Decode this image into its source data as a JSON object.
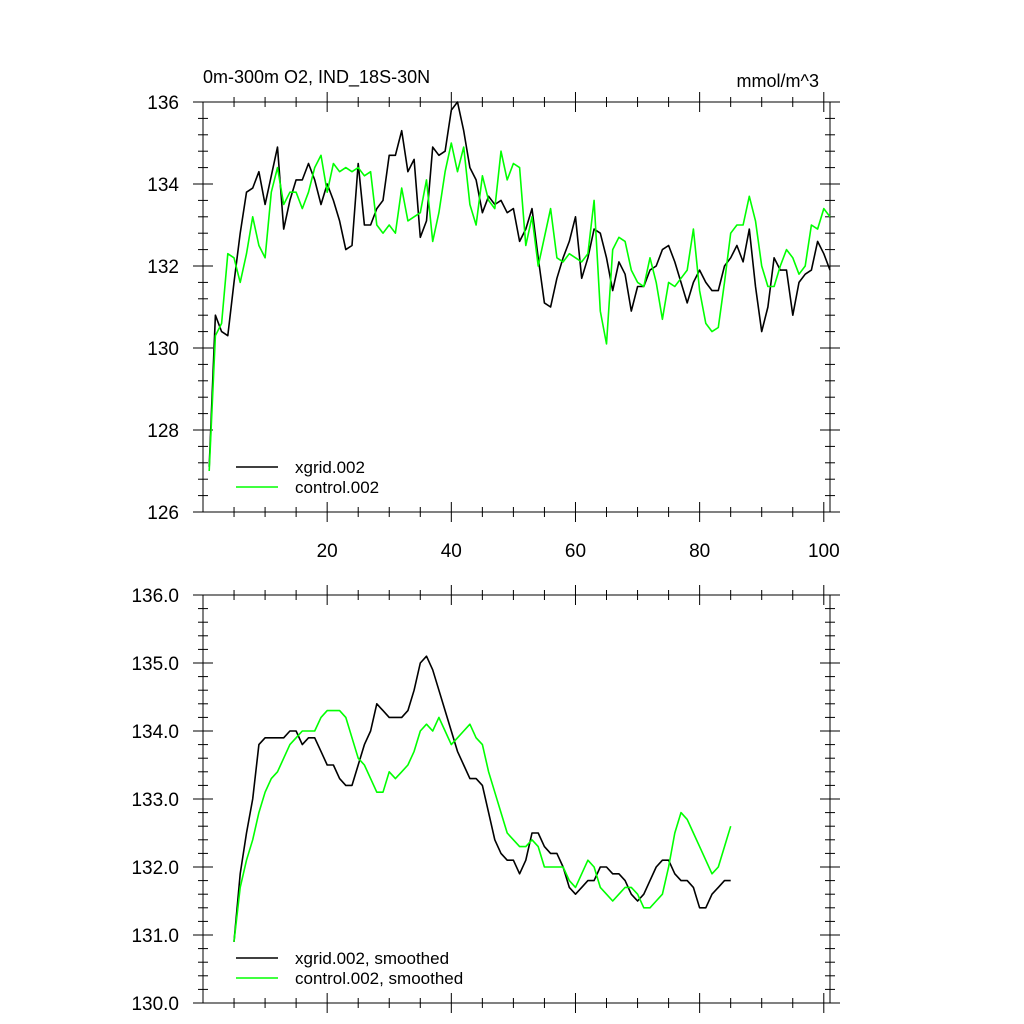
{
  "figure": {
    "title": "0m-300m O2, IND_18S-30N",
    "units": "mmol/m^3"
  },
  "chart_data": [
    {
      "type": "line",
      "panel": "top",
      "title": "0m-300m O2, IND_18S-30N",
      "units_label": "mmol/m^3",
      "xlim": [
        0,
        101
      ],
      "ylim": [
        126,
        136
      ],
      "xticks": [
        20,
        40,
        60,
        80,
        100
      ],
      "xtick_labels": [
        "20",
        "40",
        "60",
        "80",
        "100"
      ],
      "yticks": [
        126,
        128,
        130,
        132,
        134,
        136
      ],
      "ytick_labels": [
        "126",
        "128",
        "130",
        "132",
        "134",
        "136"
      ],
      "legend_position": "bottom-left",
      "x_start": 1,
      "series": [
        {
          "name": "xgrid.002",
          "color": "#000000",
          "values": [
            127.1,
            130.8,
            130.4,
            130.3,
            131.6,
            132.8,
            133.8,
            133.9,
            134.3,
            133.5,
            134.2,
            134.9,
            132.9,
            133.6,
            134.1,
            134.1,
            134.5,
            134.1,
            133.5,
            134.0,
            133.6,
            133.1,
            132.4,
            132.5,
            134.5,
            133.0,
            133.0,
            133.4,
            133.6,
            134.7,
            134.7,
            135.3,
            134.3,
            134.6,
            132.7,
            133.1,
            134.9,
            134.7,
            134.8,
            135.8,
            136.0,
            135.3,
            134.4,
            134.1,
            133.3,
            133.7,
            133.5,
            133.6,
            133.3,
            133.4,
            132.6,
            132.9,
            133.4,
            132.2,
            131.1,
            131.0,
            131.7,
            132.2,
            132.6,
            133.2,
            131.7,
            132.2,
            132.9,
            132.8,
            132.2,
            131.4,
            132.1,
            131.8,
            130.9,
            131.5,
            131.5,
            131.9,
            132.0,
            132.4,
            132.5,
            132.1,
            131.6,
            131.1,
            131.6,
            131.9,
            131.6,
            131.4,
            131.4,
            132.0,
            132.2,
            132.5,
            132.1,
            132.9,
            131.5,
            130.4,
            131.0,
            132.2,
            131.9,
            131.9,
            130.8,
            131.6,
            131.8,
            131.9,
            132.6,
            132.3,
            131.9
          ]
        },
        {
          "name": "control.002",
          "color": "#00ff00",
          "values": [
            127.0,
            130.3,
            130.6,
            132.3,
            132.2,
            131.6,
            132.3,
            133.2,
            132.5,
            132.2,
            133.8,
            134.4,
            133.5,
            133.8,
            133.8,
            133.4,
            133.8,
            134.4,
            134.7,
            133.8,
            134.5,
            134.3,
            134.4,
            134.3,
            134.4,
            134.2,
            134.3,
            133.0,
            132.8,
            133.0,
            132.8,
            133.9,
            133.1,
            133.2,
            133.3,
            134.1,
            132.6,
            133.3,
            134.3,
            135.0,
            134.3,
            134.9,
            133.5,
            133.0,
            134.2,
            133.6,
            133.4,
            134.8,
            134.1,
            134.5,
            134.4,
            132.5,
            133.2,
            132.0,
            132.7,
            133.4,
            132.2,
            132.1,
            132.3,
            132.2,
            132.1,
            132.3,
            133.6,
            130.9,
            130.1,
            132.4,
            132.7,
            132.6,
            131.9,
            131.6,
            131.5,
            132.2,
            131.6,
            130.7,
            131.6,
            131.5,
            131.7,
            131.9,
            132.9,
            131.4,
            130.6,
            130.4,
            130.5,
            131.6,
            132.8,
            133.0,
            133.0,
            133.7,
            133.1,
            132.0,
            131.5,
            131.5,
            132.0,
            132.4,
            132.2,
            131.8,
            132.0,
            133.0,
            132.9,
            133.4,
            133.2
          ]
        }
      ]
    },
    {
      "type": "line",
      "panel": "bottom",
      "xlim": [
        0,
        101
      ],
      "ylim": [
        130.0,
        136.0
      ],
      "xticks": [
        20,
        40,
        60,
        80,
        100
      ],
      "xtick_labels": [],
      "yticks": [
        130,
        131,
        132,
        133,
        134,
        135,
        136
      ],
      "ytick_labels": [
        "130.0",
        "131.0",
        "132.0",
        "133.0",
        "134.0",
        "135.0",
        "136.0"
      ],
      "legend_position": "bottom-left",
      "x_start": 5,
      "series": [
        {
          "name": "xgrid.002, smoothed",
          "color": "#000000",
          "values": [
            130.9,
            131.9,
            132.5,
            133.0,
            133.8,
            133.9,
            133.9,
            133.9,
            133.9,
            134.0,
            134.0,
            133.8,
            133.9,
            133.9,
            133.7,
            133.5,
            133.5,
            133.3,
            133.2,
            133.2,
            133.5,
            133.8,
            134.0,
            134.4,
            134.3,
            134.2,
            134.2,
            134.2,
            134.3,
            134.6,
            135.0,
            135.1,
            134.9,
            134.6,
            134.3,
            134.0,
            133.7,
            133.5,
            133.3,
            133.3,
            133.2,
            132.8,
            132.4,
            132.2,
            132.1,
            132.1,
            131.9,
            132.1,
            132.5,
            132.5,
            132.3,
            132.2,
            132.2,
            132.0,
            131.7,
            131.6,
            131.7,
            131.8,
            131.8,
            132.0,
            132.0,
            131.9,
            131.9,
            131.8,
            131.6,
            131.5,
            131.6,
            131.8,
            132.0,
            132.1,
            132.1,
            131.9,
            131.8,
            131.8,
            131.7,
            131.4,
            131.4,
            131.6,
            131.7,
            131.8,
            131.8
          ]
        },
        {
          "name": "control.002, smoothed",
          "color": "#00ff00",
          "values": [
            130.9,
            131.7,
            132.1,
            132.4,
            132.8,
            133.1,
            133.3,
            133.4,
            133.6,
            133.8,
            133.9,
            134.0,
            134.0,
            134.0,
            134.2,
            134.3,
            134.3,
            134.3,
            134.2,
            133.9,
            133.6,
            133.5,
            133.3,
            133.1,
            133.1,
            133.4,
            133.3,
            133.4,
            133.5,
            133.7,
            134.0,
            134.1,
            134.0,
            134.2,
            134.0,
            133.8,
            133.9,
            134.0,
            134.1,
            133.9,
            133.8,
            133.4,
            133.1,
            132.8,
            132.5,
            132.4,
            132.3,
            132.3,
            132.4,
            132.3,
            132.0,
            132.0,
            132.0,
            132.0,
            131.8,
            131.7,
            131.9,
            132.1,
            132.0,
            131.7,
            131.6,
            131.5,
            131.6,
            131.7,
            131.7,
            131.6,
            131.4,
            131.4,
            131.5,
            131.6,
            132.0,
            132.5,
            132.8,
            132.7,
            132.5,
            132.3,
            132.1,
            131.9,
            132.0,
            132.3,
            132.6
          ]
        }
      ]
    }
  ]
}
